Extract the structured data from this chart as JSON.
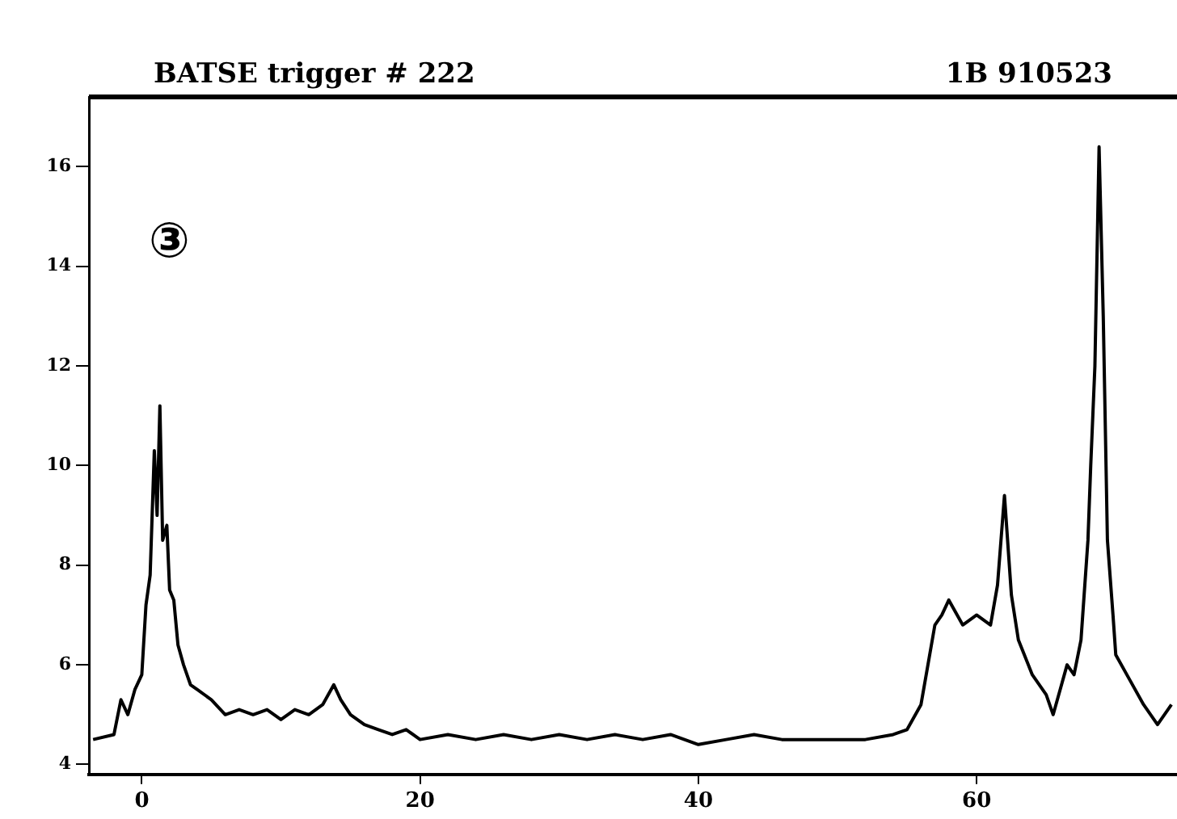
{
  "chart_data": {
    "type": "line",
    "title": "BATSE trigger # 222",
    "subtitle": "1B 910523",
    "annotations": [
      "③"
    ],
    "x": [
      -3.5,
      -2,
      -1.5,
      -1,
      -0.5,
      0,
      0.3,
      0.6,
      0.9,
      1.1,
      1.3,
      1.5,
      1.8,
      2,
      2.3,
      2.6,
      3,
      3.5,
      4,
      5,
      6,
      7,
      8,
      9,
      10,
      11,
      12,
      13,
      13.8,
      14.3,
      15,
      16,
      17,
      18,
      19,
      20,
      22,
      24,
      26,
      28,
      30,
      32,
      34,
      36,
      38,
      40,
      42,
      44,
      46,
      48,
      50,
      52,
      54,
      55,
      56,
      56.5,
      57,
      57.5,
      58,
      59,
      60,
      61,
      61.5,
      62,
      62.5,
      63,
      64,
      65,
      65.5,
      66,
      66.5,
      67,
      67.5,
      68,
      68.2,
      68.5,
      68.8,
      69.1,
      69.4,
      69.8,
      70,
      71,
      72,
      73,
      74
    ],
    "series": [
      {
        "color": "#000000",
        "values": [
          4.5,
          4.6,
          5.3,
          5.0,
          5.5,
          5.8,
          7.2,
          7.8,
          10.3,
          9.0,
          11.2,
          8.5,
          8.8,
          7.5,
          7.3,
          6.4,
          6.0,
          5.6,
          5.5,
          5.3,
          5.0,
          5.1,
          5.0,
          5.1,
          4.9,
          5.1,
          5.0,
          5.2,
          5.6,
          5.3,
          5.0,
          4.8,
          4.7,
          4.6,
          4.7,
          4.5,
          4.6,
          4.5,
          4.6,
          4.5,
          4.6,
          4.5,
          4.6,
          4.5,
          4.6,
          4.4,
          4.5,
          4.6,
          4.5,
          4.5,
          4.5,
          4.5,
          4.6,
          4.7,
          5.2,
          6.0,
          6.8,
          7.0,
          7.3,
          6.8,
          7.0,
          6.8,
          7.6,
          9.4,
          7.4,
          6.5,
          5.8,
          5.4,
          5.0,
          5.5,
          6.0,
          5.8,
          6.5,
          8.5,
          10,
          12,
          16.4,
          13,
          8.5,
          7.0,
          6.2,
          5.7,
          5.2,
          4.8,
          5.2
        ]
      }
    ],
    "xlim": [
      -3.8,
      74.4
    ],
    "ylim": [
      3.8,
      17.4
    ],
    "xticks": [
      0,
      20,
      40,
      60
    ],
    "yticks": [
      4,
      6,
      8,
      10,
      12,
      14,
      16
    ],
    "grid": false,
    "legend": false,
    "marker": "none",
    "line_style": "solid"
  }
}
